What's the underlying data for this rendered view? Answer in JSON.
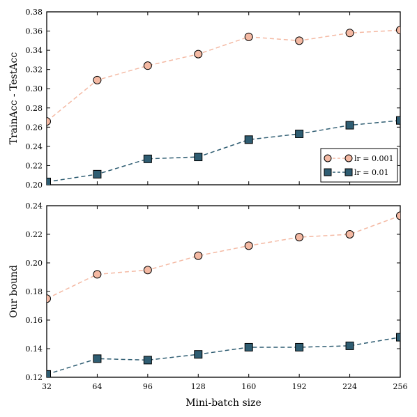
{
  "chart_data": [
    {
      "type": "line",
      "ylabel": "TrainAcc - TestAcc",
      "xlabel": "",
      "x": [
        32,
        64,
        96,
        128,
        160,
        192,
        224,
        256
      ],
      "xlim": [
        32,
        256
      ],
      "ylim": [
        0.2,
        0.38
      ],
      "xticks": [
        "32",
        "64",
        "96",
        "128",
        "160",
        "192",
        "224",
        "256"
      ],
      "show_xtick_labels": false,
      "yticks": [
        "0.20",
        "0.22",
        "0.24",
        "0.26",
        "0.28",
        "0.30",
        "0.32",
        "0.34",
        "0.36",
        "0.38"
      ],
      "grid": false,
      "legend_position": "lower-right",
      "series": [
        {
          "name": "lr = 0.001",
          "marker": "circle",
          "color": "#f4b9a3",
          "values": [
            0.266,
            0.309,
            0.324,
            0.336,
            0.354,
            0.35,
            0.358,
            0.361
          ]
        },
        {
          "name": "lr = 0.01",
          "marker": "square",
          "color": "#2f5d72",
          "values": [
            0.203,
            0.211,
            0.227,
            0.229,
            0.247,
            0.253,
            0.262,
            0.267
          ]
        }
      ]
    },
    {
      "type": "line",
      "ylabel": "Our bound",
      "xlabel": "Mini-batch size",
      "x": [
        32,
        64,
        96,
        128,
        160,
        192,
        224,
        256
      ],
      "xlim": [
        32,
        256
      ],
      "ylim": [
        0.12,
        0.24
      ],
      "xticks": [
        "32",
        "64",
        "96",
        "128",
        "160",
        "192",
        "224",
        "256"
      ],
      "show_xtick_labels": true,
      "yticks": [
        "0.12",
        "0.14",
        "0.16",
        "0.18",
        "0.20",
        "0.22",
        "0.24"
      ],
      "grid": false,
      "series": [
        {
          "marker": "circle",
          "color": "#f4b9a3",
          "values": [
            0.175,
            0.192,
            0.195,
            0.205,
            0.212,
            0.218,
            0.22,
            0.233
          ]
        },
        {
          "marker": "square",
          "color": "#2f5d72",
          "values": [
            0.122,
            0.133,
            0.132,
            0.136,
            0.141,
            0.141,
            0.142,
            0.148
          ]
        }
      ]
    }
  ]
}
